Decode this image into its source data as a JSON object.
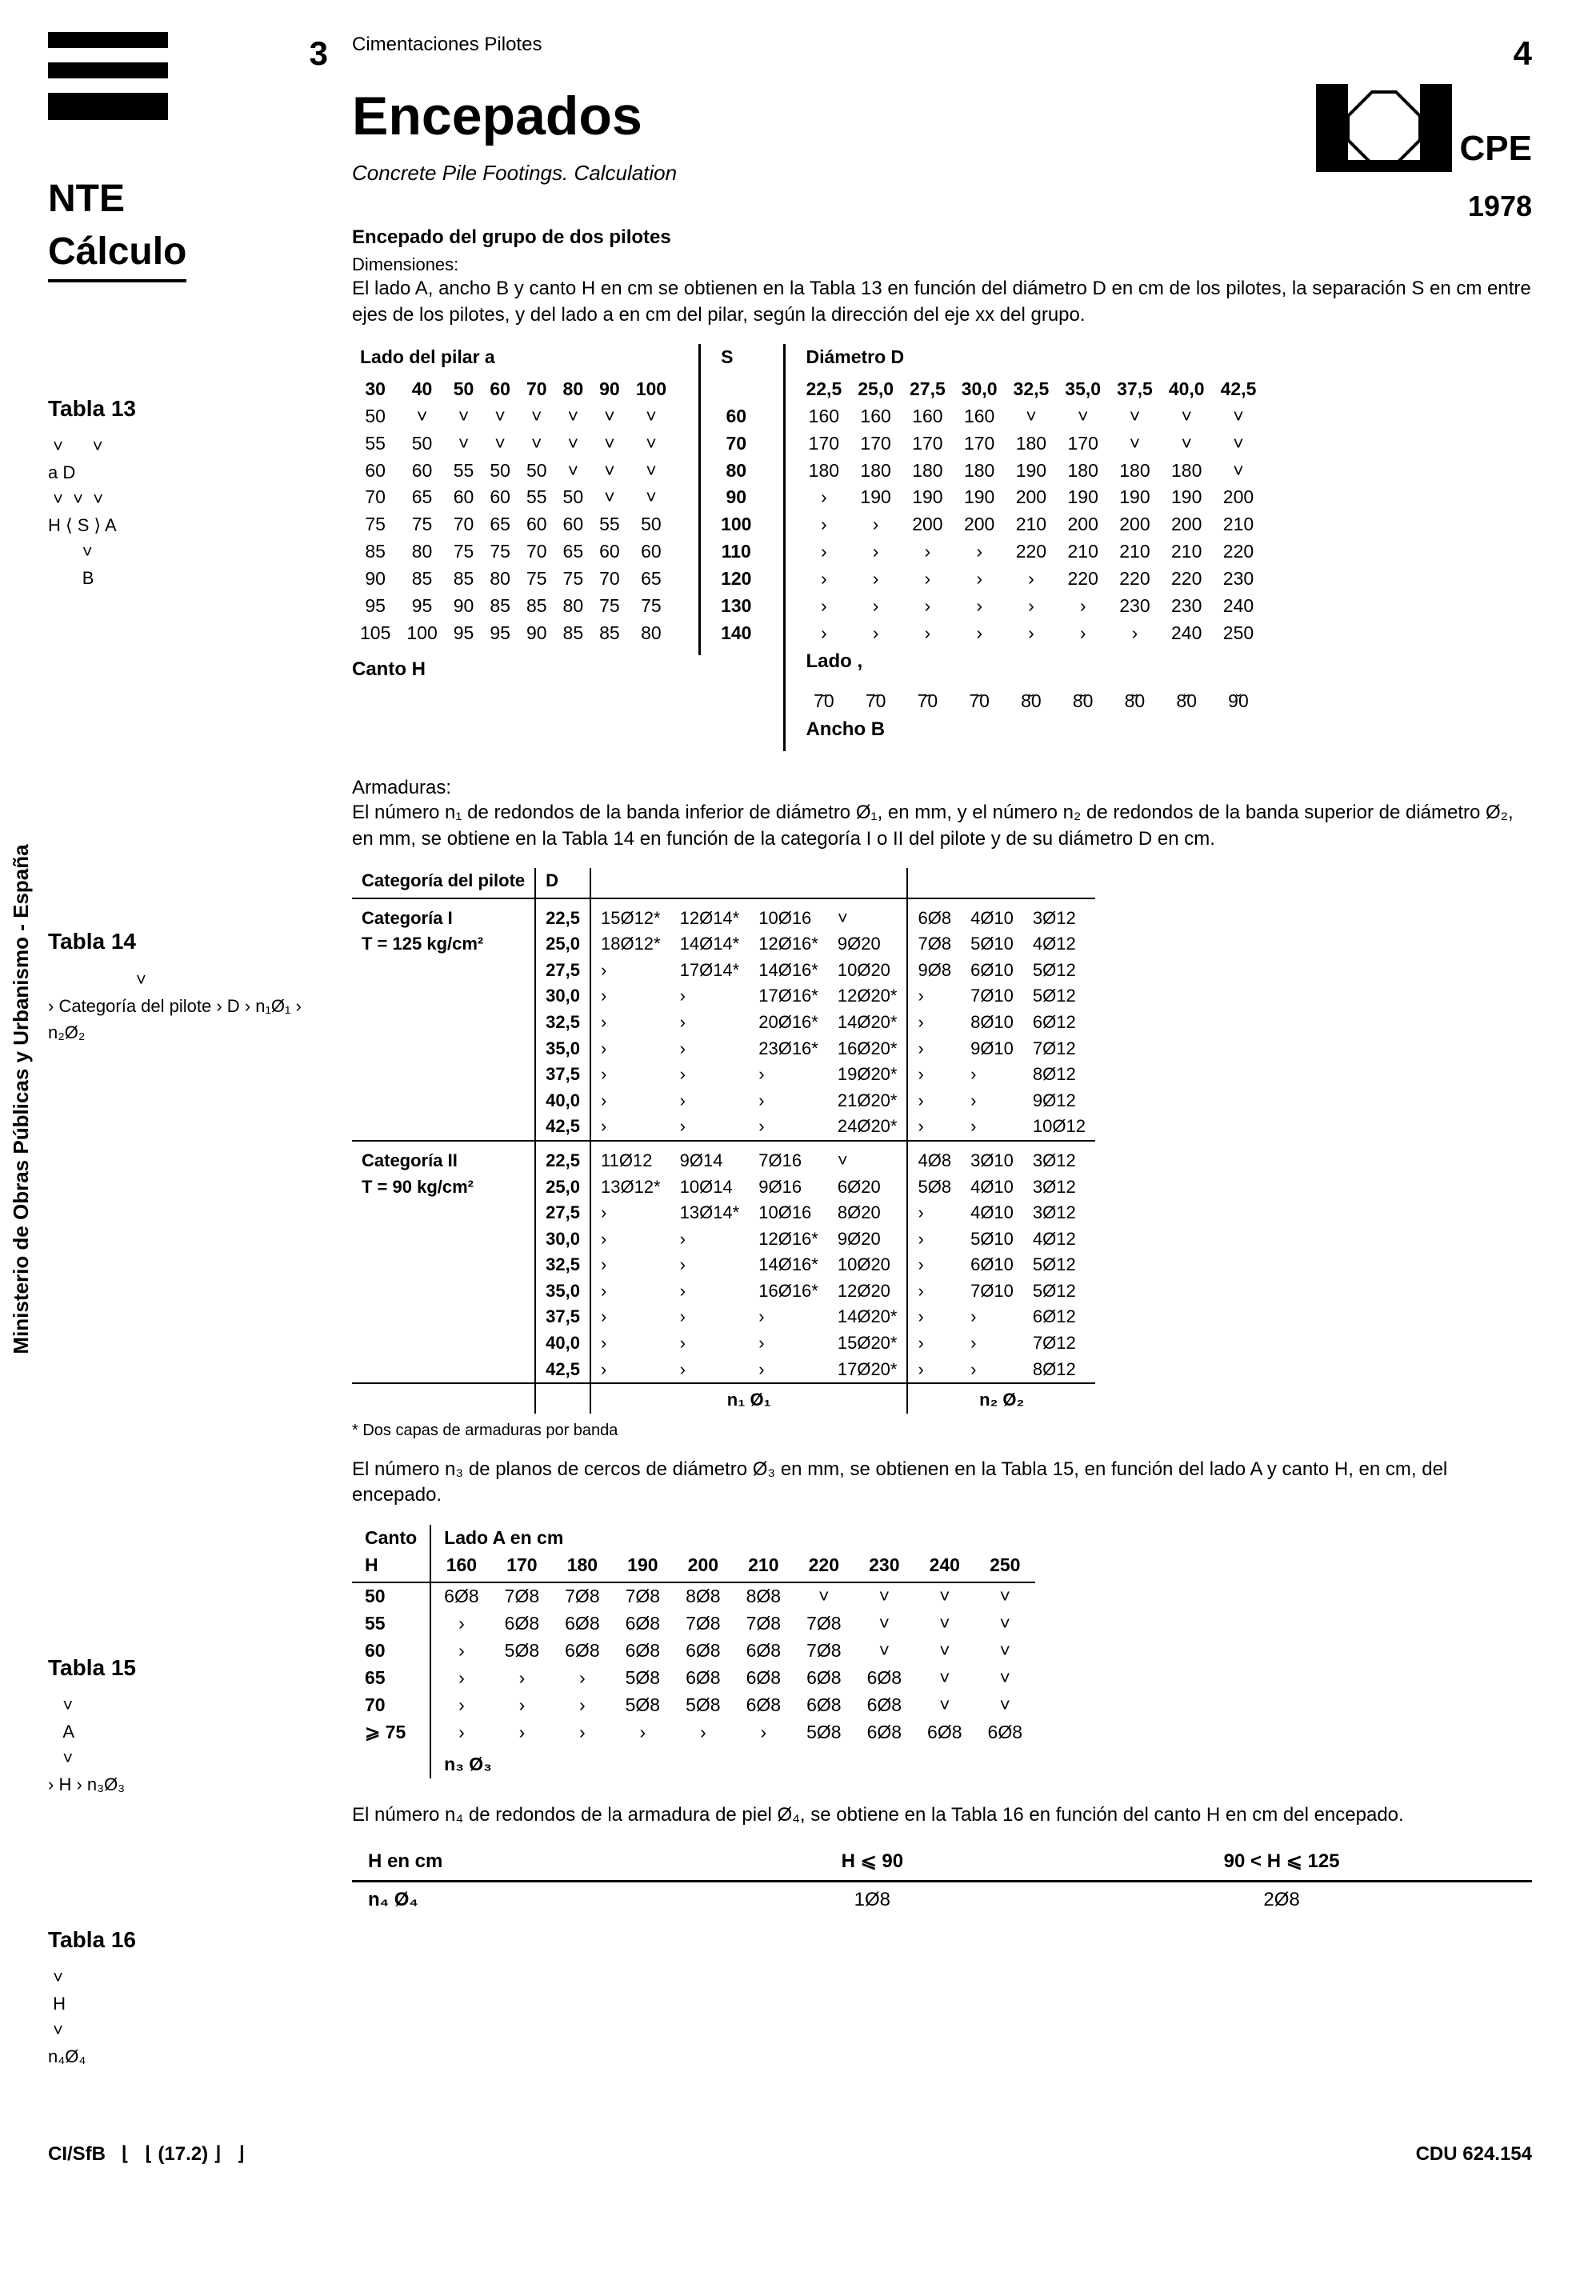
{
  "page_left_num": "3",
  "page_right_num": "4",
  "nte": "NTE",
  "calculo": "Cálculo",
  "section_header": "Cimentaciones Pilotes",
  "main_title": "Encepados",
  "subtitle": "Concrete Pile Footings. Calculation",
  "cpe": "CPE",
  "year": "1978",
  "sub_bold": "Encepado del grupo de dos pilotes",
  "dimensiones_label": "Dimensiones:",
  "dimensiones_text": "El lado A, ancho B y canto H en cm se obtienen en la Tabla 13 en función del diámetro D en cm de los pilotes, la separación S en cm entre ejes de los pilotes, y del lado a en cm del pilar, según la dirección del eje xx del grupo.",
  "tabla13_label": "Tabla 13",
  "tabla13_diagram": {
    "row1": "a         D",
    "row2": "H ⟨ S ⟩ A",
    "row3": "B"
  },
  "t13": {
    "lado_header": "Lado del pilar a",
    "s_header": "S",
    "diam_header": "Diámetro D",
    "lado_cols": [
      "30",
      "40",
      "50",
      "60",
      "70",
      "80",
      "90",
      "100"
    ],
    "diam_cols": [
      "22,5",
      "25,0",
      "27,5",
      "30,0",
      "32,5",
      "35,0",
      "37,5",
      "40,0",
      "42,5"
    ],
    "lado_rows": [
      [
        "50",
        "˅",
        "˅",
        "˅",
        "˅",
        "˅",
        "˅",
        "˅"
      ],
      [
        "55",
        "50",
        "˅",
        "˅",
        "˅",
        "˅",
        "˅",
        "˅"
      ],
      [
        "60",
        "60",
        "55",
        "50",
        "50",
        "˅",
        "˅",
        "˅"
      ],
      [
        "70",
        "65",
        "60",
        "60",
        "55",
        "50",
        "˅",
        "˅"
      ],
      [
        "75",
        "75",
        "70",
        "65",
        "60",
        "60",
        "55",
        "50"
      ],
      [
        "85",
        "80",
        "75",
        "75",
        "70",
        "65",
        "60",
        "60"
      ],
      [
        "90",
        "85",
        "85",
        "80",
        "75",
        "75",
        "70",
        "65"
      ],
      [
        "95",
        "95",
        "90",
        "85",
        "85",
        "80",
        "75",
        "75"
      ],
      [
        "105",
        "100",
        "95",
        "95",
        "90",
        "85",
        "85",
        "80"
      ]
    ],
    "s_vals": [
      "60",
      "70",
      "80",
      "90",
      "100",
      "110",
      "120",
      "130",
      "140"
    ],
    "diam_rows": [
      [
        "160",
        "160",
        "160",
        "160",
        "˅",
        "˅",
        "˅",
        "˅",
        "˅"
      ],
      [
        "170",
        "170",
        "170",
        "170",
        "180",
        "170",
        "˅",
        "˅",
        "˅"
      ],
      [
        "180",
        "180",
        "180",
        "180",
        "190",
        "180",
        "180",
        "180",
        "˅"
      ],
      [
        "›",
        "190",
        "190",
        "190",
        "200",
        "190",
        "190",
        "190",
        "200"
      ],
      [
        "›",
        "›",
        "200",
        "200",
        "210",
        "200",
        "200",
        "200",
        "210"
      ],
      [
        "›",
        "›",
        "›",
        "›",
        "220",
        "210",
        "210",
        "210",
        "220"
      ],
      [
        "›",
        "›",
        "›",
        "›",
        "›",
        "220",
        "220",
        "220",
        "230"
      ],
      [
        "›",
        "›",
        "›",
        "›",
        "›",
        "›",
        "230",
        "230",
        "240"
      ],
      [
        "›",
        "›",
        "›",
        "›",
        "›",
        "›",
        "›",
        "240",
        "250"
      ]
    ],
    "canto_label": "Canto H",
    "lado_label": "Lado ,",
    "lado_bottom": [
      "7̆0",
      "7̆0",
      "7̆0",
      "7̆0",
      "8̆0",
      "8̆0",
      "8̆0",
      "8̆0",
      "9̆0"
    ],
    "ancho_label": "Ancho B"
  },
  "armaduras_label": "Armaduras:",
  "armaduras_text": "El número n₁ de redondos de la banda inferior de diámetro Ø₁, en mm, y el número n₂ de redondos de la banda superior de diámetro Ø₂, en mm, se obtiene en la Tabla 14 en función de la categoría I o II del pilote y de su diámetro D en cm.",
  "tabla14_label": "Tabla 14",
  "tabla14_diagram": "› Categoría del pilote › D › n₁Ø₁ › n₂Ø₂",
  "t14": {
    "head_cat": "Categoría del pilote",
    "head_d": "D",
    "cat1_name": "Categoría I",
    "cat1_t": "T = 125 kg/cm²",
    "cat2_name": "Categoría II",
    "cat2_t": "T = 90 kg/cm²",
    "d_vals": [
      "22,5",
      "25,0",
      "27,5",
      "30,0",
      "32,5",
      "35,0",
      "37,5",
      "40,0",
      "42,5"
    ],
    "cat1_left": [
      [
        "15Ø12*",
        "12Ø14*",
        "10Ø16",
        "˅"
      ],
      [
        "18Ø12*",
        "14Ø14*",
        "12Ø16*",
        "9Ø20"
      ],
      [
        "›",
        "17Ø14*",
        "14Ø16*",
        "10Ø20"
      ],
      [
        "›",
        "›",
        "17Ø16*",
        "12Ø20*"
      ],
      [
        "›",
        "›",
        "20Ø16*",
        "14Ø20*"
      ],
      [
        "›",
        "›",
        "23Ø16*",
        "16Ø20*"
      ],
      [
        "›",
        "›",
        "›",
        "19Ø20*"
      ],
      [
        "›",
        "›",
        "›",
        "21Ø20*"
      ],
      [
        "›",
        "›",
        "›",
        "24Ø20*"
      ]
    ],
    "cat1_right": [
      [
        "6Ø8",
        "4Ø10",
        "3Ø12"
      ],
      [
        "7Ø8",
        "5Ø10",
        "4Ø12"
      ],
      [
        "9Ø8",
        "6Ø10",
        "5Ø12"
      ],
      [
        "›",
        "7Ø10",
        "5Ø12"
      ],
      [
        "›",
        "8Ø10",
        "6Ø12"
      ],
      [
        "›",
        "9Ø10",
        "7Ø12"
      ],
      [
        "›",
        "›",
        "8Ø12"
      ],
      [
        "›",
        "›",
        "9Ø12"
      ],
      [
        "›",
        "›",
        "10Ø12"
      ]
    ],
    "cat2_left": [
      [
        "11Ø12",
        "9Ø14",
        "7Ø16",
        "˅"
      ],
      [
        "13Ø12*",
        "10Ø14",
        "9Ø16",
        "6Ø20"
      ],
      [
        "›",
        "13Ø14*",
        "10Ø16",
        "8Ø20"
      ],
      [
        "›",
        "›",
        "12Ø16*",
        "9Ø20"
      ],
      [
        "›",
        "›",
        "14Ø16*",
        "10Ø20"
      ],
      [
        "›",
        "›",
        "16Ø16*",
        "12Ø20"
      ],
      [
        "›",
        "›",
        "›",
        "14Ø20*"
      ],
      [
        "›",
        "›",
        "›",
        "15Ø20*"
      ],
      [
        "›",
        "›",
        "›",
        "17Ø20*"
      ]
    ],
    "cat2_right": [
      [
        "4Ø8",
        "3Ø10",
        "3Ø12"
      ],
      [
        "5Ø8",
        "4Ø10",
        "3Ø12"
      ],
      [
        "›",
        "4Ø10",
        "3Ø12"
      ],
      [
        "›",
        "5Ø10",
        "4Ø12"
      ],
      [
        "›",
        "6Ø10",
        "5Ø12"
      ],
      [
        "›",
        "7Ø10",
        "5Ø12"
      ],
      [
        "›",
        "›",
        "6Ø12"
      ],
      [
        "›",
        "›",
        "7Ø12"
      ],
      [
        "›",
        "›",
        "8Ø12"
      ]
    ],
    "foot_left": "n₁ Ø₁",
    "foot_right": "n₂ Ø₂",
    "footnote": "* Dos capas de armaduras por banda"
  },
  "t15_intro": "El número n₃ de planos de cercos de diámetro Ø₃ en mm, se obtienen en la Tabla 15, en función del lado A y canto H, en cm, del encepado.",
  "tabla15_label": "Tabla 15",
  "tabla15_diagram": "› H › n₃Ø₃",
  "t15": {
    "head_canto": "Canto",
    "head_lado": "Lado A en cm",
    "head_h": "H",
    "a_cols": [
      "160",
      "170",
      "180",
      "190",
      "200",
      "210",
      "220",
      "230",
      "240",
      "250"
    ],
    "h_vals": [
      "50",
      "55",
      "60",
      "65",
      "70",
      "⩾ 75"
    ],
    "rows": [
      [
        "6Ø8",
        "7Ø8",
        "7Ø8",
        "7Ø8",
        "8Ø8",
        "8Ø8",
        "˅",
        "˅",
        "˅",
        "˅"
      ],
      [
        "›",
        "6Ø8",
        "6Ø8",
        "6Ø8",
        "7Ø8",
        "7Ø8",
        "7Ø8",
        "˅",
        "˅",
        "˅"
      ],
      [
        "›",
        "5Ø8",
        "6Ø8",
        "6Ø8",
        "6Ø8",
        "6Ø8",
        "7Ø8",
        "˅",
        "˅",
        "˅"
      ],
      [
        "›",
        "›",
        "›",
        "5Ø8",
        "6Ø8",
        "6Ø8",
        "6Ø8",
        "6Ø8",
        "˅",
        "˅"
      ],
      [
        "›",
        "›",
        "›",
        "5Ø8",
        "5Ø8",
        "6Ø8",
        "6Ø8",
        "6Ø8",
        "˅",
        "˅"
      ],
      [
        "›",
        "›",
        "›",
        "›",
        "›",
        "›",
        "5Ø8",
        "6Ø8",
        "6Ø8",
        "6Ø8"
      ]
    ],
    "foot": "n₃ Ø₃"
  },
  "t16_intro": "El número n₄ de redondos de la armadura de piel Ø₄, se obtiene en la Tabla 16 en función del canto H en cm del encepado.",
  "tabla16_label": "Tabla 16",
  "tabla16_diagram": "H\nn₄Ø₄",
  "t16": {
    "h_label": "H en cm",
    "col1": "H ⩽ 90",
    "col2": "90 < H ⩽ 125",
    "row_label": "n₄ Ø₄",
    "val1": "1Ø8",
    "val2": "2Ø8"
  },
  "vertical": "Ministerio de Obras Públicas y Urbanismo - España",
  "footer_left": "CI/SfB",
  "footer_mid": "(17.2)",
  "footer_right": "CDU 624.154"
}
